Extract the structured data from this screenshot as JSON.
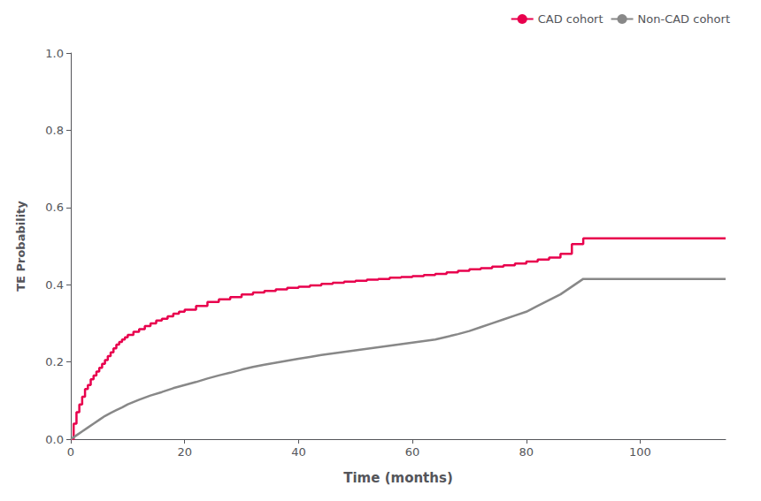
{
  "chart_data": {
    "type": "line",
    "xlabel": "Time (months)",
    "ylabel": "TE Probability",
    "xlim": [
      0,
      115
    ],
    "ylim": [
      0,
      1.0
    ],
    "xticks": [
      0,
      20,
      40,
      60,
      80,
      100
    ],
    "yticks": [
      {
        "value": 0,
        "label": "0.0"
      },
      0.2,
      0.4,
      0.6,
      0.8,
      {
        "value": 1.0,
        "label": "1.0"
      }
    ],
    "grid": false,
    "legend": "upper right",
    "series": [
      {
        "name": "CAD cohort",
        "type": "step",
        "color": "#e8004d",
        "x": [
          0,
          0.5,
          1,
          1.5,
          2,
          2.5,
          3,
          3.5,
          4,
          4.5,
          5,
          5.5,
          6,
          6.5,
          7,
          7.5,
          8,
          8.5,
          9,
          9.5,
          10,
          11,
          12,
          13,
          14,
          15,
          16,
          17,
          18,
          19,
          20,
          22,
          24,
          26,
          28,
          30,
          32,
          34,
          36,
          38,
          40,
          42,
          44,
          46,
          48,
          50,
          52,
          54,
          56,
          58,
          60,
          62,
          64,
          66,
          68,
          70,
          72,
          74,
          76,
          78,
          80,
          82,
          84,
          86,
          88,
          90,
          115
        ],
        "values": [
          0,
          0.04,
          0.07,
          0.09,
          0.11,
          0.13,
          0.14,
          0.155,
          0.165,
          0.175,
          0.185,
          0.195,
          0.205,
          0.215,
          0.225,
          0.235,
          0.245,
          0.252,
          0.258,
          0.264,
          0.27,
          0.278,
          0.285,
          0.293,
          0.3,
          0.307,
          0.312,
          0.318,
          0.325,
          0.33,
          0.335,
          0.345,
          0.355,
          0.362,
          0.368,
          0.375,
          0.38,
          0.384,
          0.388,
          0.392,
          0.395,
          0.398,
          0.402,
          0.405,
          0.408,
          0.41,
          0.413,
          0.415,
          0.418,
          0.42,
          0.422,
          0.425,
          0.428,
          0.432,
          0.436,
          0.44,
          0.443,
          0.447,
          0.45,
          0.455,
          0.46,
          0.465,
          0.47,
          0.48,
          0.505,
          0.52,
          0.52
        ]
      },
      {
        "name": "Non-CAD cohort",
        "type": "line",
        "color": "#888888",
        "x": [
          0,
          1,
          2,
          3,
          4,
          5,
          6,
          7,
          8,
          9,
          10,
          12,
          14,
          16,
          18,
          20,
          22,
          24,
          26,
          28,
          30,
          32,
          34,
          36,
          38,
          40,
          42,
          44,
          46,
          48,
          50,
          52,
          54,
          56,
          58,
          60,
          62,
          64,
          66,
          68,
          70,
          72,
          74,
          76,
          78,
          80,
          82,
          84,
          86,
          88,
          90,
          115
        ],
        "values": [
          0,
          0.01,
          0.02,
          0.03,
          0.04,
          0.05,
          0.06,
          0.068,
          0.075,
          0.082,
          0.09,
          0.102,
          0.113,
          0.122,
          0.132,
          0.14,
          0.148,
          0.157,
          0.165,
          0.172,
          0.18,
          0.187,
          0.193,
          0.198,
          0.203,
          0.208,
          0.213,
          0.218,
          0.222,
          0.226,
          0.23,
          0.234,
          0.238,
          0.242,
          0.246,
          0.25,
          0.254,
          0.258,
          0.265,
          0.272,
          0.28,
          0.29,
          0.3,
          0.31,
          0.32,
          0.33,
          0.345,
          0.36,
          0.375,
          0.395,
          0.415,
          0.415
        ]
      }
    ]
  }
}
